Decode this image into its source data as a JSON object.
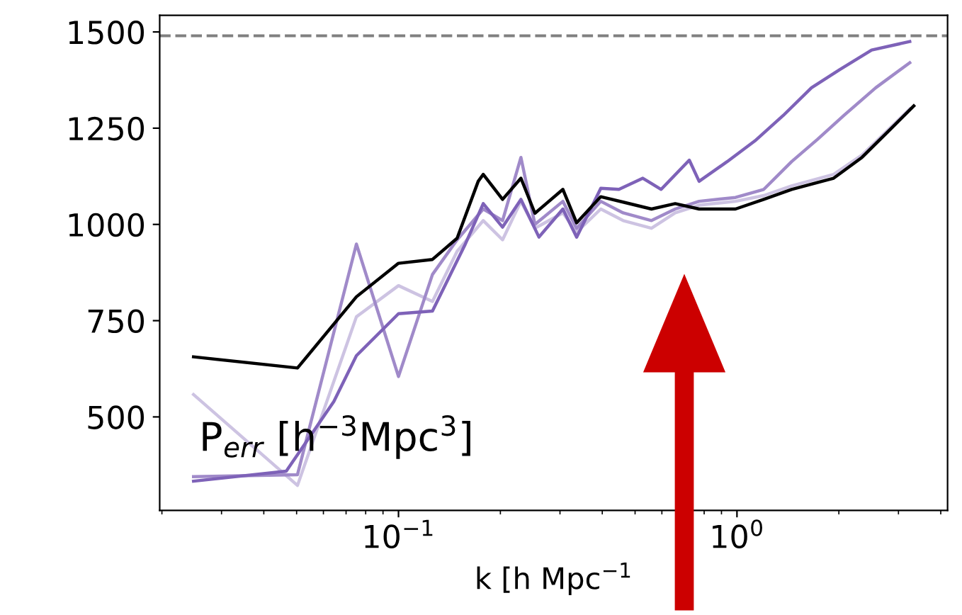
{
  "chart_data": {
    "type": "line",
    "xlabel": "k [h Mpc$^{−1}$",
    "annotations": [
      "P$_{err}$ [h$^{−3}$Mpc$^{3}$]"
    ],
    "log": "x",
    "xlim": [
      0.0197,
      4.19
    ],
    "ylim": [
      257,
      1543
    ],
    "xticks": [
      {
        "value": 0.1,
        "label": "10$^{−1}$"
      },
      {
        "value": 1,
        "label": "10$^{0}$"
      }
    ],
    "yticks": [
      500,
      750,
      1000,
      1250,
      1500
    ],
    "grid": false,
    "legend": false,
    "marker": "none",
    "line_style": "solid",
    "ref_lines": [
      {
        "axis": "y",
        "value": 1490,
        "label": null,
        "color": "#808080",
        "line_style": "dashed"
      }
    ],
    "series": [
      {
        "color": "#cdc3e2",
        "x": [
          0.0248,
          0.0503,
          0.0751,
          0.1,
          0.126,
          0.149,
          0.178,
          0.203,
          0.23,
          0.253,
          0.306,
          0.336,
          0.396,
          0.461,
          0.559,
          0.657,
          0.773,
          0.99,
          1.2,
          1.45,
          1.93,
          2.34,
          2.83,
          3.24
        ],
        "values": [
          558,
          322,
          760,
          841,
          800,
          930,
          1010,
          960,
          1060,
          990,
          1030,
          980,
          1040,
          1010,
          990,
          1030,
          1050,
          1060,
          1075,
          1100,
          1130,
          1180,
          1250,
          1300
        ]
      },
      {
        "color": "#a08ac9",
        "x": [
          0.0248,
          0.0503,
          0.0751,
          0.1,
          0.126,
          0.149,
          0.178,
          0.203,
          0.23,
          0.253,
          0.306,
          0.336,
          0.396,
          0.461,
          0.559,
          0.657,
          0.773,
          0.99,
          1.2,
          1.45,
          1.73,
          2.07,
          2.57,
          3.24
        ],
        "values": [
          345,
          350,
          949,
          605,
          870,
          960,
          1040,
          1010,
          1174,
          1000,
          1060,
          990,
          1060,
          1030,
          1010,
          1040,
          1060,
          1070,
          1091,
          1163,
          1221,
          1283,
          1355,
          1420
        ]
      },
      {
        "color": "#7e62b8",
        "x": [
          0.0248,
          0.0466,
          0.0644,
          0.0751,
          0.1,
          0.126,
          0.157,
          0.178,
          0.203,
          0.23,
          0.26,
          0.306,
          0.336,
          0.396,
          0.448,
          0.527,
          0.597,
          0.723,
          0.773,
          0.935,
          1.13,
          1.37,
          1.66,
          2.01,
          2.5,
          3.24
        ],
        "values": [
          333,
          359,
          540,
          659,
          768,
          775,
          946,
          1054,
          993,
          1065,
          967,
          1040,
          967,
          1094,
          1091,
          1120,
          1091,
          1167,
          1112,
          1163,
          1217,
          1283,
          1355,
          1402,
          1453,
          1475
        ]
      },
      {
        "color": "#000000",
        "x": [
          0.0248,
          0.0503,
          0.0751,
          0.1,
          0.126,
          0.149,
          0.172,
          0.178,
          0.203,
          0.23,
          0.253,
          0.306,
          0.336,
          0.396,
          0.461,
          0.559,
          0.657,
          0.773,
          0.99,
          1.2,
          1.45,
          1.93,
          2.34,
          2.83,
          3.33
        ],
        "values": [
          656,
          627,
          812,
          899,
          909,
          964,
          1112,
          1130,
          1065,
          1120,
          1029,
          1091,
          1004,
          1072,
          1058,
          1040,
          1054,
          1040,
          1040,
          1065,
          1091,
          1120,
          1174,
          1246,
          1308
        ]
      }
    ]
  }
}
